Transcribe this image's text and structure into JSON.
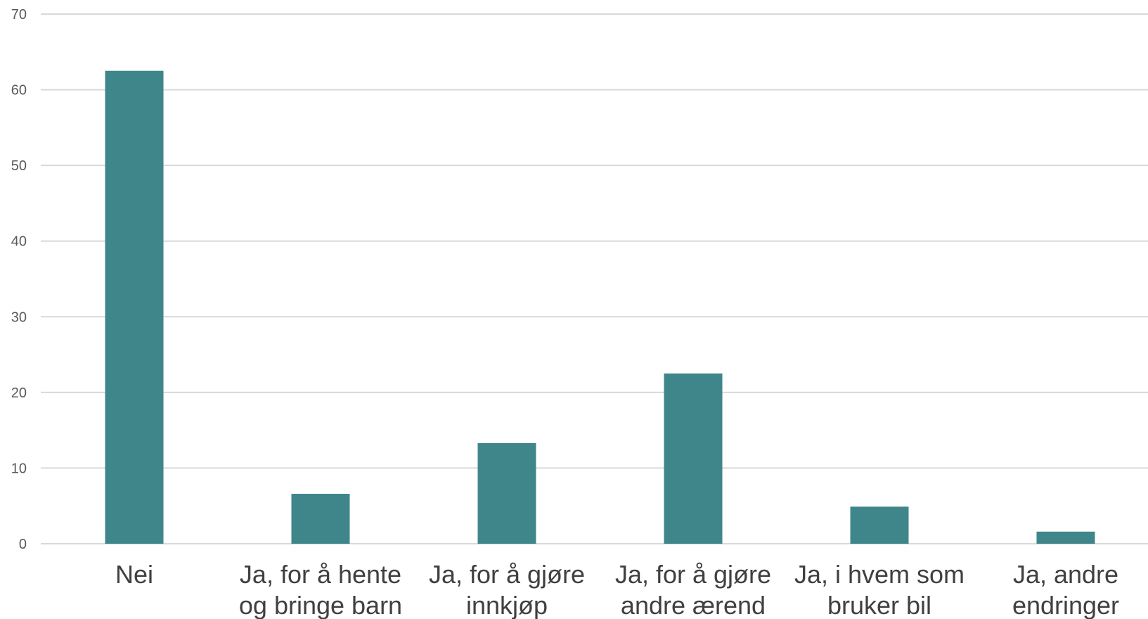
{
  "chart_data": {
    "type": "bar",
    "categories": [
      [
        "Nei"
      ],
      [
        "Ja, for å hente",
        "og bringe barn"
      ],
      [
        "Ja, for å gjøre",
        "innkjøp"
      ],
      [
        "Ja, for å gjøre",
        "andre ærend"
      ],
      [
        "Ja, i hvem som",
        "bruker bil"
      ],
      [
        "Ja, andre",
        "endringer"
      ]
    ],
    "values": [
      62.5,
      6.6,
      13.3,
      22.5,
      4.9,
      1.6
    ],
    "ylim": [
      0,
      70
    ],
    "yticks": [
      0,
      10,
      20,
      30,
      40,
      50,
      60,
      70
    ],
    "title": "",
    "xlabel": "",
    "ylabel": "",
    "grid": true,
    "legend": "none",
    "bar_color": "#3f868a"
  }
}
